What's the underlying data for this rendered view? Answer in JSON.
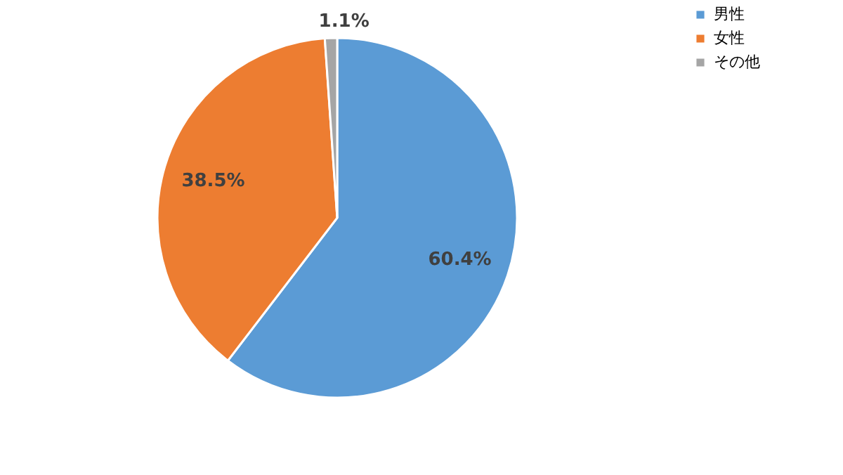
{
  "chart_data": {
    "type": "pie",
    "categories": [
      "男性",
      "女性",
      "その他"
    ],
    "values": [
      60.4,
      38.5,
      1.1
    ],
    "colors": [
      "#5b9bd5",
      "#ed7d31",
      "#a5a5a5"
    ],
    "value_labels": [
      "60.4%",
      "38.5%",
      "1.1%"
    ],
    "legend": "right"
  }
}
